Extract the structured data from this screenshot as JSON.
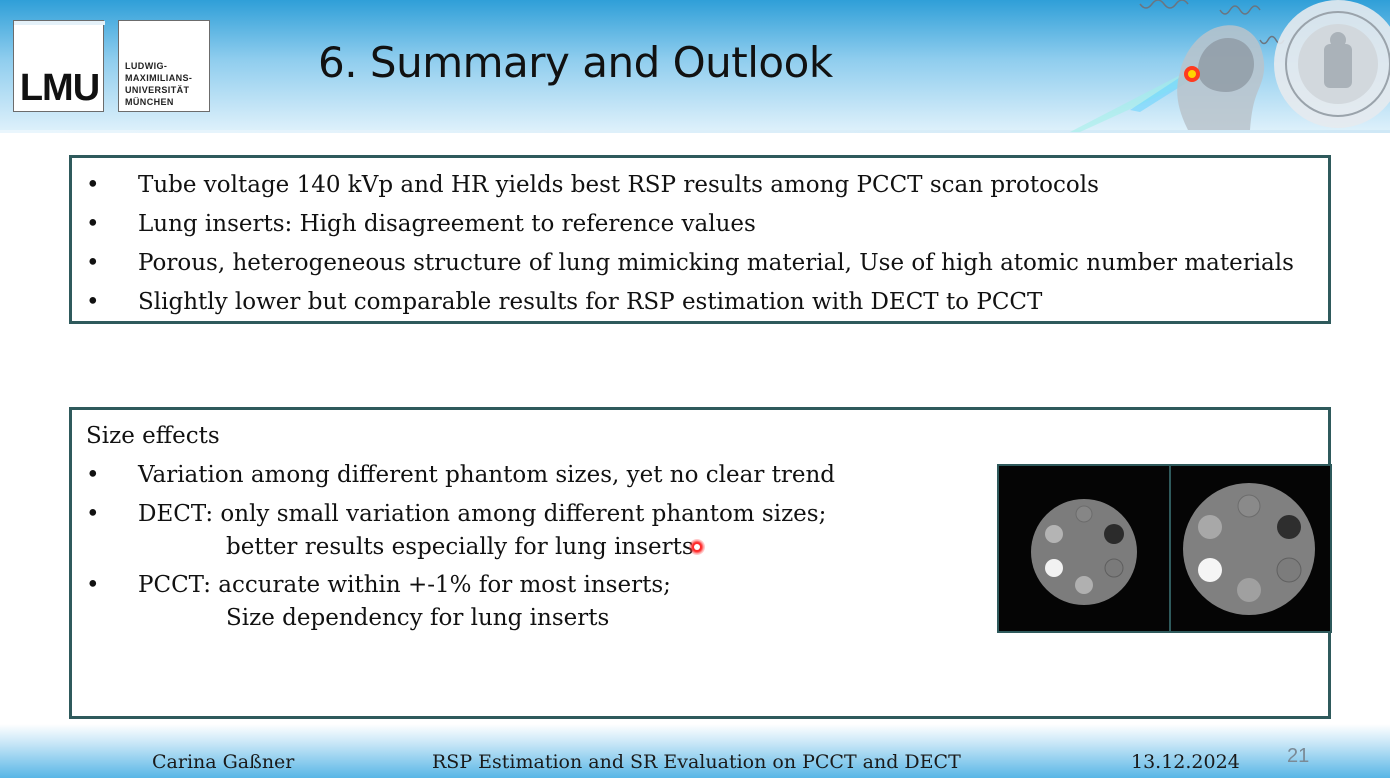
{
  "header": {
    "title": "6. Summary and Outlook",
    "logo_mark": "LMU",
    "logo_lines": [
      "LUDWIG-",
      "MAXIMILIANS-",
      "UNIVERSITÄT",
      "MÜNCHEN"
    ]
  },
  "summary_box": {
    "bullet_char": "•",
    "items": [
      "Tube voltage 140 kVp and HR yields best RSP results among PCCT scan protocols",
      "Lung inserts: High disagreement to reference values",
      "Porous, heterogeneous structure of lung mimicking material, Use of high atomic number materials",
      "Slightly lower but comparable results for RSP estimation with DECT to PCCT"
    ]
  },
  "size_effects": {
    "heading": "Size effects",
    "items": [
      {
        "text": "Variation among different phantom sizes, yet no clear trend",
        "sub": ""
      },
      {
        "text": "DECT: only small variation among different phantom sizes;",
        "sub": "better results especially for lung inserts"
      },
      {
        "text": "PCCT: accurate within +-1% for most inserts;",
        "sub": "Size dependency for lung inserts"
      }
    ]
  },
  "footer": {
    "author": "Carina Gaßner",
    "talk_title": "RSP Estimation and SR Evaluation on PCCT and DECT",
    "date": "13.12.2024",
    "page": "21"
  },
  "colors": {
    "box_border": "#2f5a5c",
    "header_blue": "#2f9fd8",
    "pointer": "#ff2a2a"
  },
  "icons": [
    "lmu-logo-icon",
    "university-seal-icon",
    "head-scan-icon",
    "laser-pointer-icon"
  ]
}
